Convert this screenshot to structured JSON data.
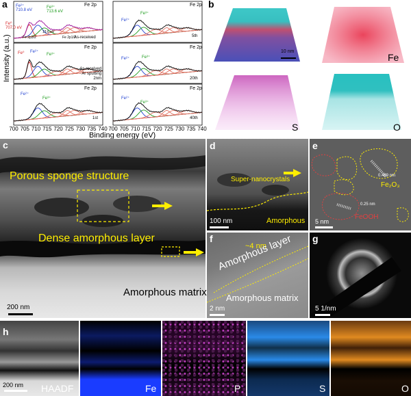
{
  "panel_a": {
    "label": "a",
    "ylabel": "Intensity (a.u.)",
    "xlabel": "Binding energy (eV)",
    "xticks": [
      "700",
      "705",
      "710",
      "715",
      "720",
      "725",
      "730",
      "735",
      "740"
    ],
    "subplots_left": [
      {
        "title": "Fe 2p",
        "note": "As-received",
        "peak_fe0": "Fe⁰",
        "peak_fe0_val": "707.0 eV",
        "peak_fe2": "Fe²⁺",
        "peak_fe2_val": "710.8 eV",
        "peak_fe3": "Fe³⁺",
        "peak_fe3_val": "713.6 eV",
        "split": "13.6 eV",
        "p32": "Fe 2p3/2",
        "p12": "Fe 2p1/2"
      },
      {
        "title": "Fe 2p",
        "note": "As-received\nAr sputting 2nm",
        "peak_fe0": "Fe⁰",
        "peak_fe2": "Fe²⁺",
        "peak_fe3": "Fe³⁺"
      },
      {
        "title": "Fe 2p",
        "note": "1st",
        "peak_fe2": "Fe²⁺",
        "peak_fe3": "Fe³⁺"
      }
    ],
    "subplots_right": [
      {
        "title": "Fe 2p",
        "note": "5th",
        "peak_fe2": "Fe²⁺",
        "peak_fe3": "Fe³⁺"
      },
      {
        "title": "Fe 2p",
        "note": "20th",
        "peak_fe2": "Fe²⁺",
        "peak_fe3": "Fe³⁺"
      },
      {
        "title": "Fe 2p",
        "note": "40th",
        "peak_fe2": "Fe²⁺",
        "peak_fe3": "Fe³⁺"
      }
    ]
  },
  "panel_b": {
    "label": "b",
    "scale": "10 nm",
    "maps": [
      "Fe",
      "S",
      "O"
    ]
  },
  "panel_c": {
    "label": "c",
    "porous": "Porous sponge structure",
    "dense": "Dense amorphous layer",
    "matrix": "Amorphous matrix",
    "scale": "200 nm"
  },
  "panel_d": {
    "label": "d",
    "nano": "Super-nanocrystals",
    "amorph": "Amorphous",
    "scale": "100 nm"
  },
  "panel_e": {
    "label": "e",
    "fe2o3": "Fe₂O₃",
    "d1": "0.489 nm",
    "d2": "0.25 nm",
    "feooh": "FeOOH",
    "scale": "5 nm"
  },
  "panel_f": {
    "label": "f",
    "thick": "~4 nm",
    "layer": "Amorphous layer",
    "matrix": "Amorphous matrix",
    "scale": "2 nm"
  },
  "panel_g": {
    "label": "g",
    "scale": "5 1/nm"
  },
  "panel_h": {
    "label": "h",
    "scale": "200 nm",
    "maps": [
      "HAADF",
      "Fe",
      "P",
      "S",
      "O"
    ]
  },
  "colors": {
    "fe0": "#d62728",
    "fe2": "#1f3fd0",
    "fe3": "#1a9a1a",
    "sat": "#e07060",
    "map_fe": "#1a3cff",
    "map_p": "#d633d6",
    "map_s": "#2a8ae8",
    "map_o": "#e08a20",
    "apt_fe": "#e8304a",
    "apt_o": "#38c8c8",
    "apt_s": "#d050c0"
  }
}
